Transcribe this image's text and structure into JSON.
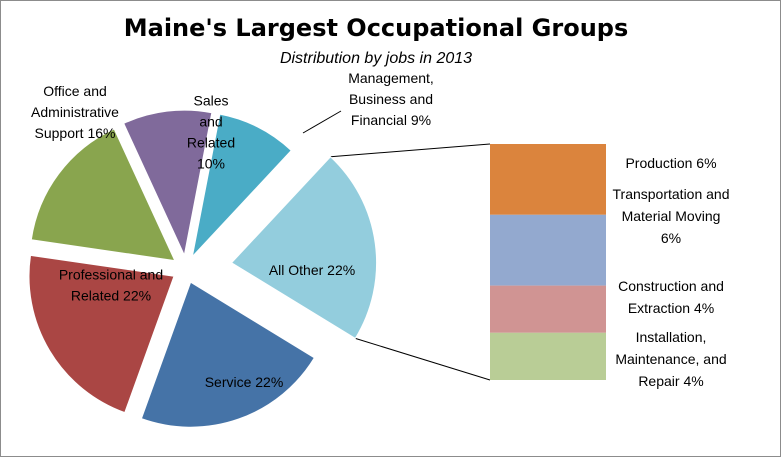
{
  "chart_data": {
    "type": "pie",
    "title": "Maine's Largest Occupational Groups",
    "subtitle": "Distribution by jobs in 2013",
    "pie": {
      "slices": [
        {
          "name": "Management, Business and Financial",
          "value": 9,
          "label": [
            "Management,",
            "Business and",
            "Financial 9%"
          ],
          "color": "#4aacc6"
        },
        {
          "name": "All Other",
          "value": 22,
          "label": [
            "All Other 22%"
          ],
          "color": "#93cddd"
        },
        {
          "name": "Service",
          "value": 22,
          "label": [
            "Service 22%"
          ],
          "color": "#4573a7"
        },
        {
          "name": "Professional and Related",
          "value": 22,
          "label": [
            "Professional and",
            "Related 22%"
          ],
          "color": "#aa4644"
        },
        {
          "name": "Office and Administrative Support",
          "value": 16,
          "label": [
            "Office and",
            "Administrative",
            "Support  16%"
          ],
          "color": "#89a54e"
        },
        {
          "name": "Sales and Related",
          "value": 10,
          "label": [
            "Sales",
            "and",
            "Related",
            "10%"
          ],
          "color": "#806a9b"
        }
      ]
    },
    "bar": {
      "segments": [
        {
          "name": "Production",
          "value": 6,
          "label": [
            "Production 6%"
          ],
          "color": "#db843d"
        },
        {
          "name": "Transportation and Material Moving",
          "value": 6,
          "label": [
            "Transportation and",
            "Material Moving",
            "6%"
          ],
          "color": "#93a9cf"
        },
        {
          "name": "Construction and Extraction",
          "value": 4,
          "label": [
            "Construction and",
            "Extraction 4%"
          ],
          "color": "#d09493"
        },
        {
          "name": "Installation, Maintenance, and Repair",
          "value": 4,
          "label": [
            "Installation,",
            "Maintenance, and",
            "Repair 4%"
          ],
          "color": "#b9cd96"
        }
      ]
    }
  }
}
